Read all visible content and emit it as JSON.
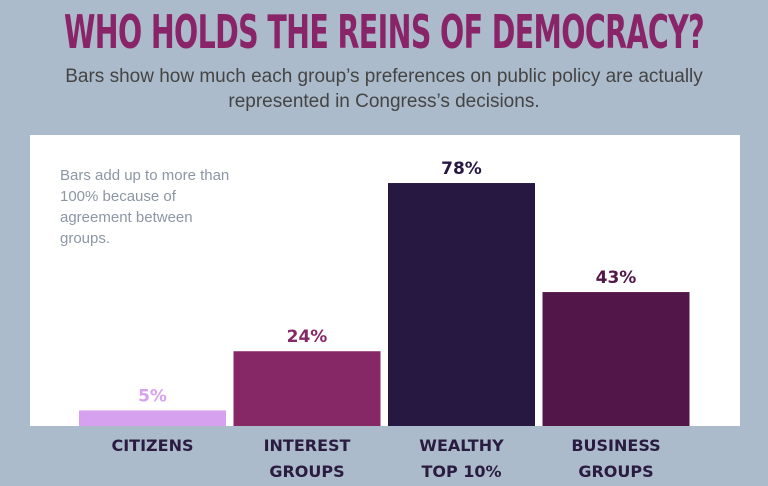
{
  "title": "WHO HOLDS THE REINS OF DEMOCRACY?",
  "subtitle": "Bars show how much each group’s preferences on public policy are actually represented in Congress’s decisions.",
  "note": "Bars add up to more than 100% because of agreement between groups.",
  "chart_data": {
    "type": "bar",
    "title": "WHO HOLDS THE REINS OF DEMOCRACY?",
    "categories": [
      [
        "CITIZENS"
      ],
      [
        "INTEREST",
        "GROUPS"
      ],
      [
        "WEALTHY",
        "TOP 10%"
      ],
      [
        "BUSINESS",
        "GROUPS"
      ]
    ],
    "values": [
      5,
      24,
      78,
      43
    ],
    "value_labels": [
      "5%",
      "24%",
      "78%",
      "43%"
    ],
    "colors": [
      "#d6a2ef",
      "#862766",
      "#271842",
      "#521649"
    ],
    "label_colors": [
      "#d6a2ef",
      "#862766",
      "#271842",
      "#521649"
    ],
    "ylim": [
      0,
      90
    ],
    "grid": false,
    "unit": "%"
  }
}
